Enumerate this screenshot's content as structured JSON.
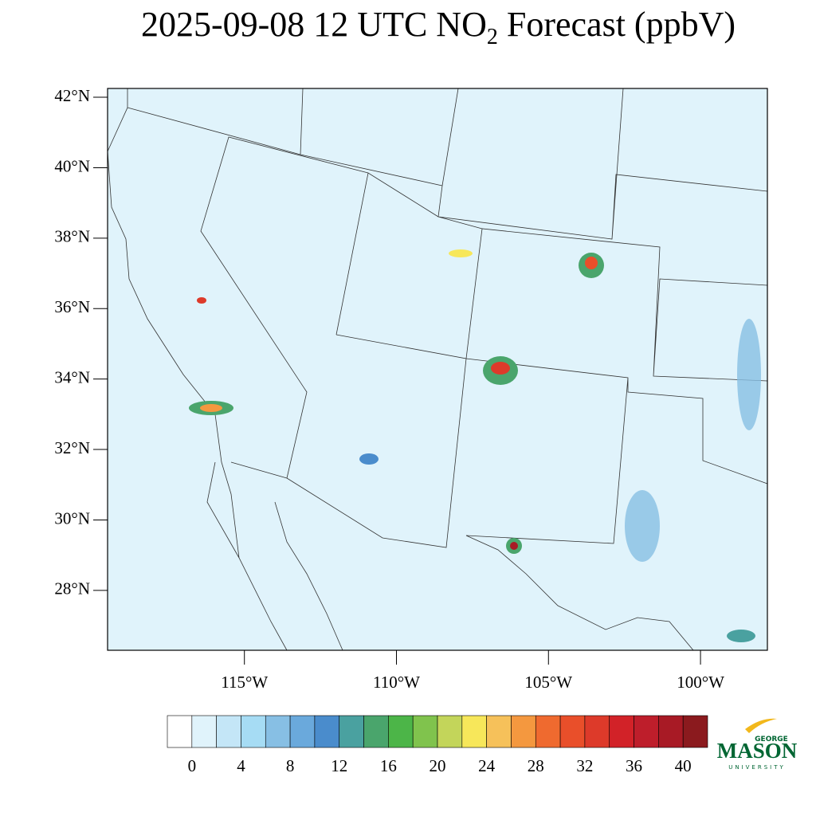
{
  "map": {
    "title": {
      "main": "2025-09-08 12 UTC NO",
      "subscript": "2",
      "rest": " Forecast (ppbV)"
    },
    "xlim": [
      -119.5,
      -97.8
    ],
    "ylim": [
      26.3,
      42.25
    ],
    "xticks": [
      {
        "value": -115,
        "label": "115°W"
      },
      {
        "value": -110,
        "label": "110°W"
      },
      {
        "value": -105,
        "label": "105°W"
      },
      {
        "value": -100,
        "label": "100°W"
      }
    ],
    "yticks": [
      {
        "value": 42,
        "label": "42°N"
      },
      {
        "value": 40,
        "label": "40°N"
      },
      {
        "value": 38,
        "label": "38°N"
      },
      {
        "value": 36,
        "label": "36°N"
      },
      {
        "value": 34,
        "label": "34°N"
      },
      {
        "value": 32,
        "label": "32°N"
      },
      {
        "value": 30,
        "label": "30°N"
      },
      {
        "value": 28,
        "label": "28°N"
      }
    ],
    "colorbar": {
      "colors": [
        "#ffffff",
        "#e0f3fb",
        "#c4e6f7",
        "#a6dcf4",
        "#87bfe4",
        "#6aa9dc",
        "#4a8ccc",
        "#4aa1a0",
        "#4aa56c",
        "#4cb548",
        "#80c34d",
        "#c3d55a",
        "#f7e75a",
        "#f6c15a",
        "#f4983f",
        "#ef6a2f",
        "#e94f2a",
        "#dd3a2a",
        "#d22228",
        "#be1e2b",
        "#a81a25",
        "#8b1a1e"
      ],
      "ticks": [
        0,
        4,
        8,
        12,
        16,
        20,
        24,
        28,
        32,
        36,
        40
      ],
      "step": 2
    },
    "logo": {
      "top": "GEORGE",
      "main": "MASON",
      "bottom": "UNIVERSITY"
    }
  }
}
